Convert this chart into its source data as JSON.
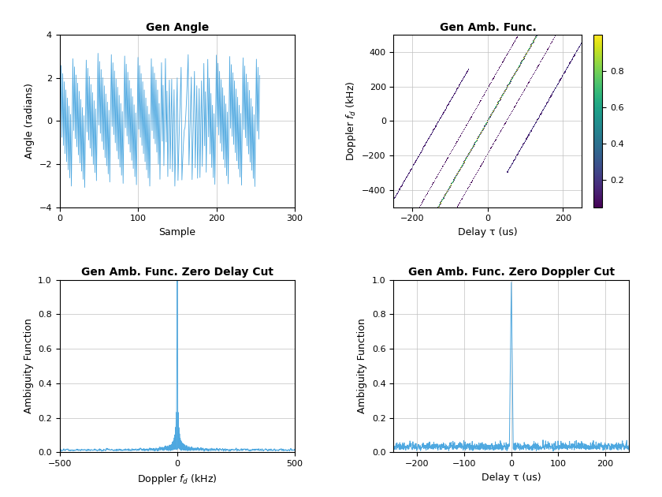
{
  "title1": "Gen Angle",
  "xlabel1": "Sample",
  "ylabel1": "Angle (radians)",
  "xlim1": [
    0,
    300
  ],
  "ylim1": [
    -4,
    4
  ],
  "line_color1": "#4ea8e0",
  "title2": "Gen Amb. Func.",
  "xlabel2": "Delay τ (us)",
  "ylabel2": "Doppler $f_d$ (kHz)",
  "xlim2": [
    -250,
    250
  ],
  "ylim2": [
    -500,
    500
  ],
  "cmap2": "viridis",
  "title3": "Gen Amb. Func. Zero Delay Cut",
  "xlabel3": "Doppler $f_d$ (kHz)",
  "ylabel3": "Ambiguity Function",
  "xlim3": [
    -500,
    500
  ],
  "ylim3": [
    0,
    1
  ],
  "line_color3": "#4ea8e0",
  "title4": "Gen Amb. Func. Zero Doppler Cut",
  "xlabel4": "Delay τ (us)",
  "ylabel4": "Ambiguity Function",
  "xlim4": [
    -250,
    250
  ],
  "ylim4": [
    0,
    1
  ],
  "line_color4": "#4ea8e0",
  "bg_color": "#ffffff",
  "grid_color": "#c0c0c0"
}
